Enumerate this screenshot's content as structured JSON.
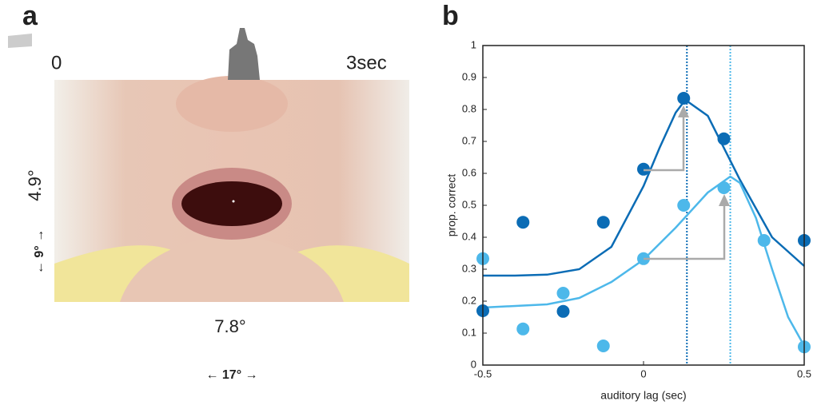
{
  "panel_a": {
    "label": "a",
    "time_start": "0",
    "time_end": "3sec",
    "mouth_height": "4.9°",
    "image_height": "← 9° →",
    "mouth_width": "7.8°",
    "image_width": "← 17° →"
  },
  "chart_data": {
    "type": "scatter",
    "label": "b",
    "xlabel": "auditory lag (sec)",
    "ylabel": "prop. correct",
    "xlim": [
      -0.5,
      0.5
    ],
    "xticks": [
      -0.5,
      0,
      0.5
    ],
    "ylim": [
      0,
      1
    ],
    "yticks": [
      0,
      0.1,
      0.2,
      0.3,
      0.4,
      0.5,
      0.6,
      0.7,
      0.8,
      0.9,
      1
    ],
    "series": [
      {
        "color": "#0b6cb5",
        "x": [
          -0.5,
          -0.375,
          -0.25,
          -0.125,
          0,
          0.125,
          0.25,
          0.5
        ],
        "values": [
          0.17,
          0.447,
          0.168,
          0.447,
          0.613,
          0.835,
          0.708,
          0.39
        ]
      },
      {
        "color": "#4db8ea",
        "x": [
          -0.5,
          -0.375,
          -0.25,
          -0.125,
          0,
          0.125,
          0.25,
          0.375,
          0.5
        ],
        "values": [
          0.333,
          0.113,
          0.225,
          0.06,
          0.333,
          0.5,
          0.555,
          0.39,
          0.057
        ]
      }
    ],
    "fits": [
      {
        "color": "#0b6cb5",
        "x": [
          -0.5,
          -0.4,
          -0.3,
          -0.2,
          -0.1,
          0,
          0.05,
          0.1,
          0.13,
          0.2,
          0.3,
          0.4,
          0.5
        ],
        "values": [
          0.28,
          0.28,
          0.283,
          0.3,
          0.37,
          0.56,
          0.68,
          0.79,
          0.83,
          0.78,
          0.58,
          0.4,
          0.31
        ]
      },
      {
        "color": "#4db8ea",
        "x": [
          -0.5,
          -0.3,
          -0.2,
          -0.1,
          0,
          0.1,
          0.2,
          0.27,
          0.3,
          0.35,
          0.4,
          0.45,
          0.5
        ],
        "values": [
          0.18,
          0.19,
          0.21,
          0.26,
          0.33,
          0.43,
          0.54,
          0.59,
          0.57,
          0.46,
          0.3,
          0.15,
          0.06
        ]
      }
    ],
    "vlines": [
      {
        "value": 0.135,
        "color": "#0b6cb5"
      },
      {
        "value": 0.27,
        "color": "#4db8ea"
      }
    ]
  }
}
